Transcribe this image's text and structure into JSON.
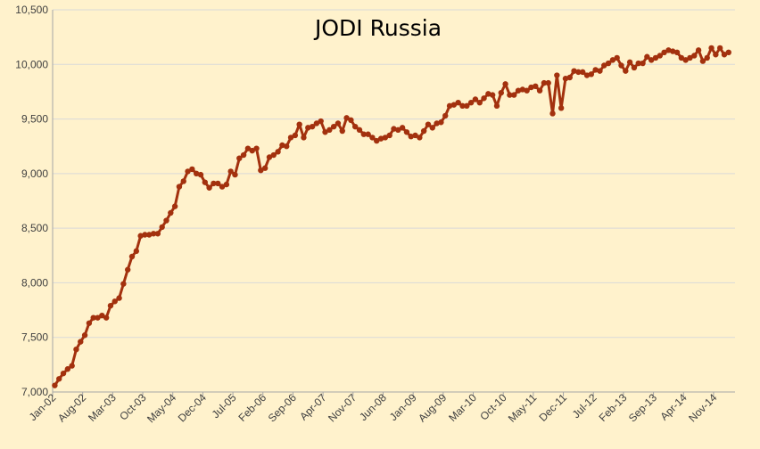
{
  "chart_data": {
    "type": "line",
    "title": "JODI Russia",
    "xlabel": "",
    "ylabel": "",
    "ylim": [
      7000,
      10500
    ],
    "y_ticks": [
      "7,000",
      "7,500",
      "8,000",
      "8,500",
      "9,000",
      "9,500",
      "10,000",
      "10,500"
    ],
    "x_tick_labels": [
      "Jan-02",
      "Aug-02",
      "Mar-03",
      "Oct-03",
      "May-04",
      "Dec-04",
      "Jul-05",
      "Feb-06",
      "Sep-06",
      "Apr-07",
      "Nov-07",
      "Jun-08",
      "Jan-09",
      "Aug-09",
      "Mar-10",
      "Oct-10",
      "May-11",
      "Dec-11",
      "Jul-12",
      "Feb-13",
      "Sep-13",
      "Apr-14",
      "Nov-14"
    ],
    "x_start": "Jan-02",
    "x_end": "Mar-15",
    "grid": true,
    "legend": "none",
    "colors": {
      "background": "#FFF2CC",
      "series": "#A3310E",
      "grid": "#D9D9D9",
      "axis": "#A6A6A6"
    },
    "series": [
      {
        "values": [
          7060,
          7120,
          7170,
          7210,
          7240,
          7390,
          7460,
          7520,
          7630,
          7680,
          7680,
          7700,
          7680,
          7790,
          7830,
          7860,
          7990,
          8120,
          8240,
          8290,
          8430,
          8440,
          8440,
          8450,
          8450,
          8510,
          8570,
          8640,
          8700,
          8880,
          8930,
          9020,
          9040,
          9000,
          8990,
          8920,
          8870,
          8910,
          8910,
          8880,
          8900,
          9020,
          8990,
          9140,
          9170,
          9230,
          9210,
          9230,
          9030,
          9050,
          9150,
          9170,
          9200,
          9260,
          9250,
          9330,
          9350,
          9450,
          9330,
          9420,
          9430,
          9460,
          9480,
          9380,
          9400,
          9430,
          9460,
          9390,
          9510,
          9490,
          9430,
          9400,
          9360,
          9360,
          9330,
          9300,
          9320,
          9330,
          9350,
          9410,
          9400,
          9420,
          9380,
          9340,
          9350,
          9330,
          9390,
          9450,
          9420,
          9460,
          9470,
          9530,
          9620,
          9630,
          9650,
          9620,
          9620,
          9650,
          9680,
          9650,
          9690,
          9730,
          9720,
          9620,
          9740,
          9820,
          9720,
          9720,
          9760,
          9770,
          9760,
          9790,
          9800,
          9760,
          9830,
          9830,
          9550,
          9900,
          9600,
          9870,
          9880,
          9940,
          9930,
          9930,
          9900,
          9910,
          9950,
          9940,
          9990,
          10010,
          10040,
          10060,
          9990,
          9940,
          10020,
          9970,
          10010,
          10010,
          10070,
          10040,
          10060,
          10080,
          10110,
          10130,
          10120,
          10110,
          10060,
          10040,
          10060,
          10080,
          10130,
          10030,
          10060,
          10150,
          10090,
          10150,
          10090,
          10110
        ]
      }
    ]
  }
}
